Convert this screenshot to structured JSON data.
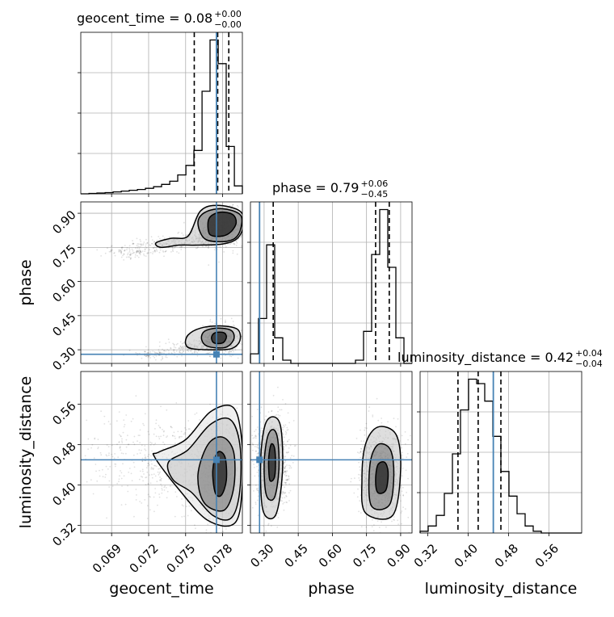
{
  "chart_data": {
    "type": "corner",
    "parameters": [
      {
        "name": "geocent_time",
        "xlabel": "geocent_time",
        "range": [
          0.0665,
          0.0796
        ],
        "ticks": [
          "0.069",
          "0.072",
          "0.075",
          "0.078"
        ],
        "tick_values": [
          0.069,
          0.072,
          0.075,
          0.078
        ],
        "truth": 0.0775,
        "title": "geocent_time = 0.08",
        "title_sup": "+0.00",
        "title_sub": "−0.00",
        "quantiles": [
          0.0757,
          0.0776,
          0.0785
        ],
        "histogram": {
          "bins": [
            0.0665,
            0.06716,
            0.06781,
            0.06847,
            0.06912,
            0.06978,
            0.07043,
            0.07109,
            0.07174,
            0.0724,
            0.07305,
            0.07371,
            0.07436,
            0.07502,
            0.07567,
            0.07633,
            0.07698,
            0.07764,
            0.07829,
            0.07895,
            0.0796
          ],
          "counts": [
            0,
            1,
            2,
            3,
            5,
            7,
            9,
            11,
            14,
            18,
            24,
            32,
            48,
            72,
            110,
            260,
            390,
            330,
            120,
            20
          ]
        }
      },
      {
        "name": "phase",
        "xlabel": "phase",
        "ylabel": "phase",
        "range": [
          0.24,
          0.95
        ],
        "ticks": [
          "0.30",
          "0.45",
          "0.60",
          "0.75",
          "0.90"
        ],
        "tick_values": [
          0.3,
          0.45,
          0.6,
          0.75,
          0.9
        ],
        "truth": 0.28,
        "title": "phase = 0.79",
        "title_sup": "+0.06",
        "title_sub": "−0.45",
        "quantiles": [
          0.34,
          0.79,
          0.85
        ],
        "histogram": {
          "bins": [
            0.24,
            0.2755,
            0.311,
            0.3465,
            0.382,
            0.4175,
            0.453,
            0.4885,
            0.524,
            0.5595,
            0.595,
            0.6305,
            0.666,
            0.7015,
            0.737,
            0.7725,
            0.808,
            0.8435,
            0.879,
            0.9145,
            0.95
          ],
          "counts": [
            15,
            70,
            185,
            40,
            5,
            0,
            0,
            0,
            0,
            0,
            0,
            0,
            0,
            5,
            50,
            170,
            240,
            150,
            40,
            0
          ]
        }
      },
      {
        "name": "luminosity_distance",
        "xlabel": "luminosity_distance",
        "ylabel": "luminosity_distance",
        "range": [
          0.305,
          0.625
        ],
        "ticks": [
          "0.32",
          "0.40",
          "0.48",
          "0.56"
        ],
        "tick_values": [
          0.32,
          0.4,
          0.48,
          0.56
        ],
        "truth": 0.45,
        "title": "luminosity_distance = 0.42",
        "title_sup": "+0.04",
        "title_sub": "−0.04",
        "quantiles": [
          0.38,
          0.42,
          0.465
        ],
        "histogram": {
          "bins": [
            0.305,
            0.321,
            0.337,
            0.353,
            0.369,
            0.385,
            0.401,
            0.417,
            0.433,
            0.449,
            0.465,
            0.481,
            0.497,
            0.513,
            0.529,
            0.545,
            0.561,
            0.577,
            0.593,
            0.609,
            0.625
          ],
          "counts": [
            2,
            8,
            20,
            45,
            90,
            140,
            175,
            170,
            150,
            110,
            70,
            42,
            22,
            8,
            2,
            0,
            0,
            0,
            0,
            0
          ]
        }
      }
    ],
    "truth_color": "#4682b4",
    "grid": true,
    "density_clusters": [
      {
        "x": "geocent_time",
        "y": "phase",
        "blobs": [
          {
            "cx": 0.0781,
            "cy": 0.84,
            "sx": 0.0008,
            "sy": 0.04,
            "n": 900
          },
          {
            "cx": 0.0765,
            "cy": 0.79,
            "sx": 0.0009,
            "sy": 0.02,
            "n": 260
          },
          {
            "cx": 0.0735,
            "cy": 0.765,
            "sx": 0.0012,
            "sy": 0.015,
            "n": 160
          },
          {
            "cx": 0.0705,
            "cy": 0.73,
            "sx": 0.0012,
            "sy": 0.015,
            "n": 110
          },
          {
            "cx": 0.0778,
            "cy": 0.35,
            "sx": 0.0007,
            "sy": 0.03,
            "n": 900
          },
          {
            "cx": 0.0755,
            "cy": 0.31,
            "sx": 0.0012,
            "sy": 0.015,
            "n": 180
          },
          {
            "cx": 0.0725,
            "cy": 0.28,
            "sx": 0.001,
            "sy": 0.01,
            "n": 80
          }
        ]
      },
      {
        "x": "geocent_time",
        "y": "luminosity_distance",
        "blobs": [
          {
            "cx": 0.0777,
            "cy": 0.425,
            "sx": 0.0008,
            "sy": 0.045,
            "n": 1400
          },
          {
            "cx": 0.0745,
            "cy": 0.44,
            "sx": 0.0018,
            "sy": 0.04,
            "n": 350
          },
          {
            "cx": 0.0705,
            "cy": 0.46,
            "sx": 0.0022,
            "sy": 0.045,
            "n": 180
          }
        ]
      },
      {
        "x": "phase",
        "y": "luminosity_distance",
        "blobs": [
          {
            "cx": 0.335,
            "cy": 0.445,
            "sx": 0.035,
            "sy": 0.045,
            "n": 1100
          },
          {
            "cx": 0.815,
            "cy": 0.42,
            "sx": 0.045,
            "sy": 0.04,
            "n": 1300
          }
        ]
      }
    ],
    "contours": [
      {
        "x": "geocent_time",
        "y": "phase",
        "levels": [
          [
            [
              0.077,
              0.805
            ],
            [
              0.078,
              0.8
            ],
            [
              0.0787,
              0.82
            ],
            [
              0.0791,
              0.86
            ],
            [
              0.0788,
              0.895
            ],
            [
              0.0778,
              0.905
            ],
            [
              0.077,
              0.885
            ],
            [
              0.0768,
              0.85
            ]
          ],
          [
            [
              0.0765,
              0.79
            ],
            [
              0.0778,
              0.775
            ],
            [
              0.079,
              0.79
            ],
            [
              0.0795,
              0.84
            ],
            [
              0.0794,
              0.895
            ],
            [
              0.078,
              0.92
            ],
            [
              0.0766,
              0.905
            ],
            [
              0.076,
              0.86
            ]
          ],
          [
            [
              0.073,
              0.75
            ],
            [
              0.0745,
              0.76
            ],
            [
              0.076,
              0.76
            ],
            [
              0.078,
              0.765
            ],
            [
              0.0792,
              0.79
            ],
            [
              0.0797,
              0.85
            ],
            [
              0.0794,
              0.91
            ],
            [
              0.0776,
              0.935
            ],
            [
              0.0762,
              0.91
            ],
            [
              0.0752,
              0.8
            ],
            [
              0.0738,
              0.79
            ],
            [
              0.0726,
              0.77
            ]
          ],
          [
            [
              0.0773,
              0.33
            ],
            [
              0.078,
              0.33
            ],
            [
              0.0783,
              0.355
            ],
            [
              0.0781,
              0.375
            ],
            [
              0.0774,
              0.375
            ],
            [
              0.0771,
              0.355
            ]
          ],
          [
            [
              0.0768,
              0.315
            ],
            [
              0.0782,
              0.31
            ],
            [
              0.0789,
              0.345
            ],
            [
              0.0787,
              0.385
            ],
            [
              0.0775,
              0.395
            ],
            [
              0.0765,
              0.38
            ],
            [
              0.0763,
              0.345
            ]
          ],
          [
            [
              0.0755,
              0.305
            ],
            [
              0.0772,
              0.3
            ],
            [
              0.0787,
              0.305
            ],
            [
              0.0794,
              0.34
            ],
            [
              0.0792,
              0.39
            ],
            [
              0.0778,
              0.405
            ],
            [
              0.0762,
              0.395
            ],
            [
              0.0752,
              0.365
            ],
            [
              0.075,
              0.325
            ]
          ]
        ]
      },
      {
        "x": "geocent_time",
        "y": "luminosity_distance",
        "levels": [
          [
            [
              0.0774,
              0.385
            ],
            [
              0.0779,
              0.38
            ],
            [
              0.0783,
              0.41
            ],
            [
              0.0782,
              0.455
            ],
            [
              0.0776,
              0.465
            ],
            [
              0.0772,
              0.43
            ]
          ],
          [
            [
              0.0765,
              0.365
            ],
            [
              0.0781,
              0.35
            ],
            [
              0.0789,
              0.395
            ],
            [
              0.0789,
              0.465
            ],
            [
              0.078,
              0.495
            ],
            [
              0.0768,
              0.48
            ],
            [
              0.076,
              0.42
            ]
          ],
          [
            [
              0.074,
              0.41
            ],
            [
              0.0755,
              0.385
            ],
            [
              0.0772,
              0.34
            ],
            [
              0.0787,
              0.335
            ],
            [
              0.0794,
              0.39
            ],
            [
              0.0794,
              0.48
            ],
            [
              0.0786,
              0.53
            ],
            [
              0.077,
              0.52
            ],
            [
              0.0752,
              0.47
            ],
            [
              0.0736,
              0.445
            ]
          ],
          [
            [
              0.0725,
              0.455
            ],
            [
              0.0745,
              0.39
            ],
            [
              0.0768,
              0.33
            ],
            [
              0.079,
              0.325
            ],
            [
              0.0796,
              0.4
            ],
            [
              0.0795,
              0.5
            ],
            [
              0.0788,
              0.555
            ],
            [
              0.077,
              0.545
            ],
            [
              0.075,
              0.49
            ],
            [
              0.0728,
              0.465
            ]
          ]
        ]
      },
      {
        "x": "phase",
        "y": "luminosity_distance",
        "levels": [
          [
            [
              0.325,
              0.41
            ],
            [
              0.345,
              0.415
            ],
            [
              0.35,
              0.445
            ],
            [
              0.345,
              0.475
            ],
            [
              0.33,
              0.48
            ],
            [
              0.32,
              0.45
            ]
          ],
          [
            [
              0.31,
              0.38
            ],
            [
              0.345,
              0.375
            ],
            [
              0.365,
              0.43
            ],
            [
              0.36,
              0.49
            ],
            [
              0.34,
              0.51
            ],
            [
              0.315,
              0.495
            ],
            [
              0.3,
              0.44
            ]
          ],
          [
            [
              0.295,
              0.35
            ],
            [
              0.35,
              0.34
            ],
            [
              0.38,
              0.42
            ],
            [
              0.375,
              0.51
            ],
            [
              0.345,
              0.535
            ],
            [
              0.305,
              0.52
            ],
            [
              0.285,
              0.45
            ]
          ],
          [
            [
              0.8,
              0.385
            ],
            [
              0.835,
              0.39
            ],
            [
              0.845,
              0.425
            ],
            [
              0.83,
              0.445
            ],
            [
              0.8,
              0.44
            ],
            [
              0.79,
              0.41
            ]
          ],
          [
            [
              0.77,
              0.36
            ],
            [
              0.85,
              0.36
            ],
            [
              0.87,
              0.42
            ],
            [
              0.855,
              0.47
            ],
            [
              0.8,
              0.48
            ],
            [
              0.765,
              0.44
            ]
          ],
          [
            [
              0.745,
              0.345
            ],
            [
              0.865,
              0.34
            ],
            [
              0.9,
              0.43
            ],
            [
              0.88,
              0.5
            ],
            [
              0.8,
              0.515
            ],
            [
              0.745,
              0.48
            ],
            [
              0.73,
              0.41
            ]
          ]
        ]
      }
    ],
    "truth_markers": [
      {
        "x": "geocent_time",
        "y": "phase",
        "value": [
          0.0775,
          0.28
        ]
      },
      {
        "x": "geocent_time",
        "y": "luminosity_distance",
        "value": [
          0.0775,
          0.45
        ]
      },
      {
        "x": "phase",
        "y": "luminosity_distance",
        "value": [
          0.28,
          0.45
        ]
      }
    ]
  }
}
